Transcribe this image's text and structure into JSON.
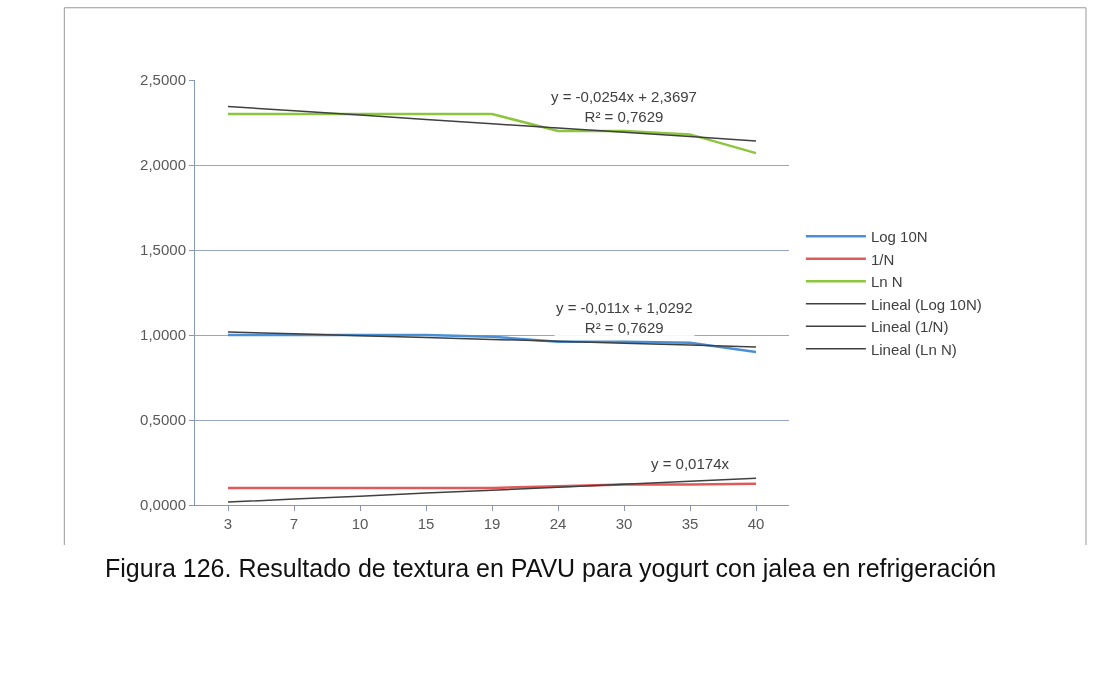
{
  "chart_data": {
    "type": "line",
    "categories": [
      "3",
      "7",
      "10",
      "15",
      "19",
      "24",
      "30",
      "35",
      "40"
    ],
    "series": [
      {
        "name": "Log 10N",
        "color": "#4a8fd6",
        "values": [
          1.0,
          1.0,
          1.0,
          1.0,
          0.99,
          0.96,
          0.96,
          0.955,
          0.9
        ]
      },
      {
        "name": "1/N",
        "color": "#e05a5a",
        "values": [
          0.1,
          0.1,
          0.1,
          0.1,
          0.1,
          0.11,
          0.12,
          0.12,
          0.125
        ]
      },
      {
        "name": "Ln N",
        "color": "#8cc63f",
        "values": [
          2.3,
          2.3,
          2.3,
          2.3,
          2.3,
          2.2,
          2.2,
          2.18,
          2.07
        ]
      },
      {
        "name": "Lineal (Log 10N)",
        "color": "#404040",
        "values": [
          1.018,
          1.007,
          0.996,
          0.985,
          0.974,
          0.963,
          0.952,
          0.941,
          0.93
        ]
      },
      {
        "name": "Lineal (1/N)",
        "color": "#404040",
        "values": [
          0.017,
          0.035,
          0.052,
          0.07,
          0.087,
          0.104,
          0.122,
          0.139,
          0.157
        ]
      },
      {
        "name": "Lineal (Ln N)",
        "color": "#404040",
        "values": [
          2.344,
          2.319,
          2.294,
          2.268,
          2.243,
          2.217,
          2.192,
          2.167,
          2.141
        ]
      }
    ],
    "ylim": [
      0,
      2.5
    ],
    "yticks": [
      {
        "value": 0,
        "label": "0,0000"
      },
      {
        "value": 0.5,
        "label": "0,5000"
      },
      {
        "value": 1,
        "label": "1,0000"
      },
      {
        "value": 1.5,
        "label": "1,5000"
      },
      {
        "value": 2,
        "label": "2,0000"
      },
      {
        "value": 2.5,
        "label": "2,5000"
      }
    ],
    "grid": "y",
    "legend": "right",
    "marker": "none",
    "line_style": "solid",
    "annotations": [
      {
        "text": "y = -0,0254x + 2,3697\nR² = 0,7629",
        "x": "30",
        "y": 2.19
      },
      {
        "text": "y = -0,011x + 1,0292\nR² = 0,7629",
        "x": "30",
        "y": 0.95
      },
      {
        "text": "y = 0,0174x",
        "x": "35",
        "y": 0.15
      },
      "Figura 126. Resultado de textura en PAVU para yogurt con jalea en refrigeración"
    ]
  }
}
